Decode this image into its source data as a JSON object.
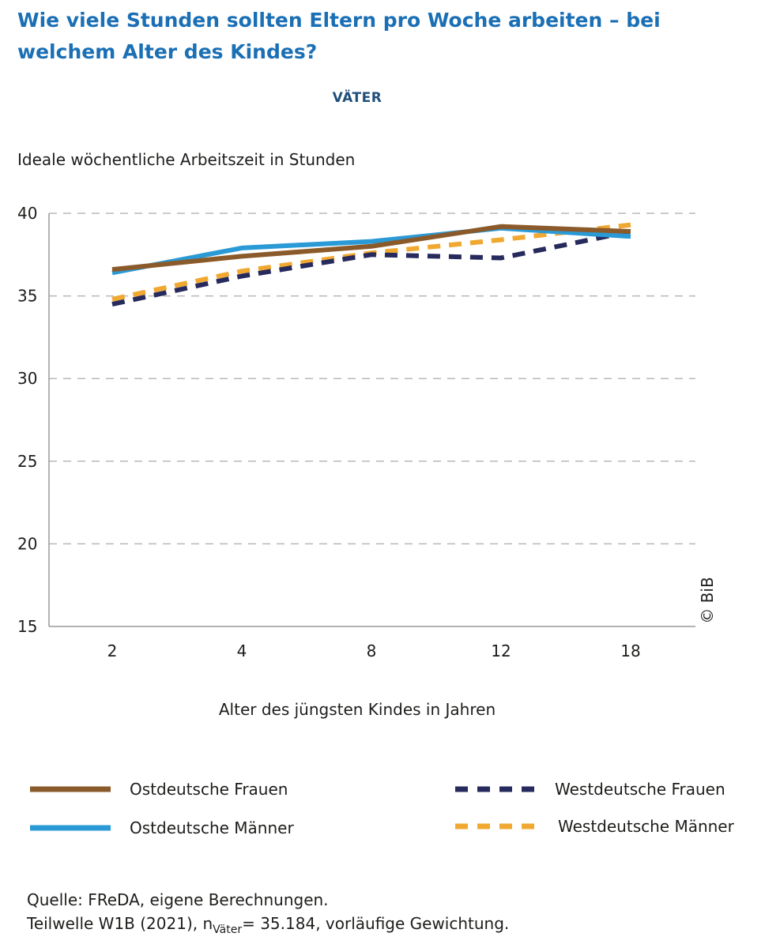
{
  "header": {
    "title": "Wie viele Stunden sollten Eltern pro Woche arbeiten – bei welchem Alter des Kindes?",
    "subtitle": "VÄTER"
  },
  "chart_data": {
    "type": "line",
    "title": "Wie viele Stunden sollten Eltern pro Woche arbeiten – bei welchem Alter des Kindes?",
    "subtitle": "VÄTER",
    "ylabel": "Ideale wöchentliche Arbeitszeit in Stunden",
    "xlabel": "Alter des jüngsten Kindes in Jahren",
    "categories": [
      "2",
      "4",
      "8",
      "12",
      "18"
    ],
    "ylim": [
      15,
      40
    ],
    "yticks": [
      15,
      20,
      25,
      30,
      35,
      40
    ],
    "grid": true,
    "legend_position": "bottom",
    "series": [
      {
        "name": "Ostdeutsche Frauen",
        "values": [
          36.6,
          37.4,
          38.0,
          39.2,
          38.9
        ],
        "color": "#8b5a2b",
        "style": "solid"
      },
      {
        "name": "Ostdeutsche Männer",
        "values": [
          36.4,
          37.9,
          38.3,
          39.1,
          38.6
        ],
        "color": "#2a9ad6",
        "style": "solid"
      },
      {
        "name": "Westdeutsche Frauen",
        "values": [
          34.5,
          36.2,
          37.5,
          37.3,
          38.9
        ],
        "color": "#262a5c",
        "style": "dashed"
      },
      {
        "name": "Westdeutsche Männer",
        "values": [
          34.8,
          36.5,
          37.6,
          38.4,
          39.3
        ],
        "color": "#f0a830",
        "style": "dashed"
      }
    ]
  },
  "copyright": "© BiB",
  "source": {
    "line1": "Quelle: FReDA, eigene Berechnungen.",
    "line2_prefix": "Teilwelle W1B (2021), n",
    "line2_sub": "Väter",
    "line2_suffix": "= 35.184, vorläufige Gewichtung."
  }
}
